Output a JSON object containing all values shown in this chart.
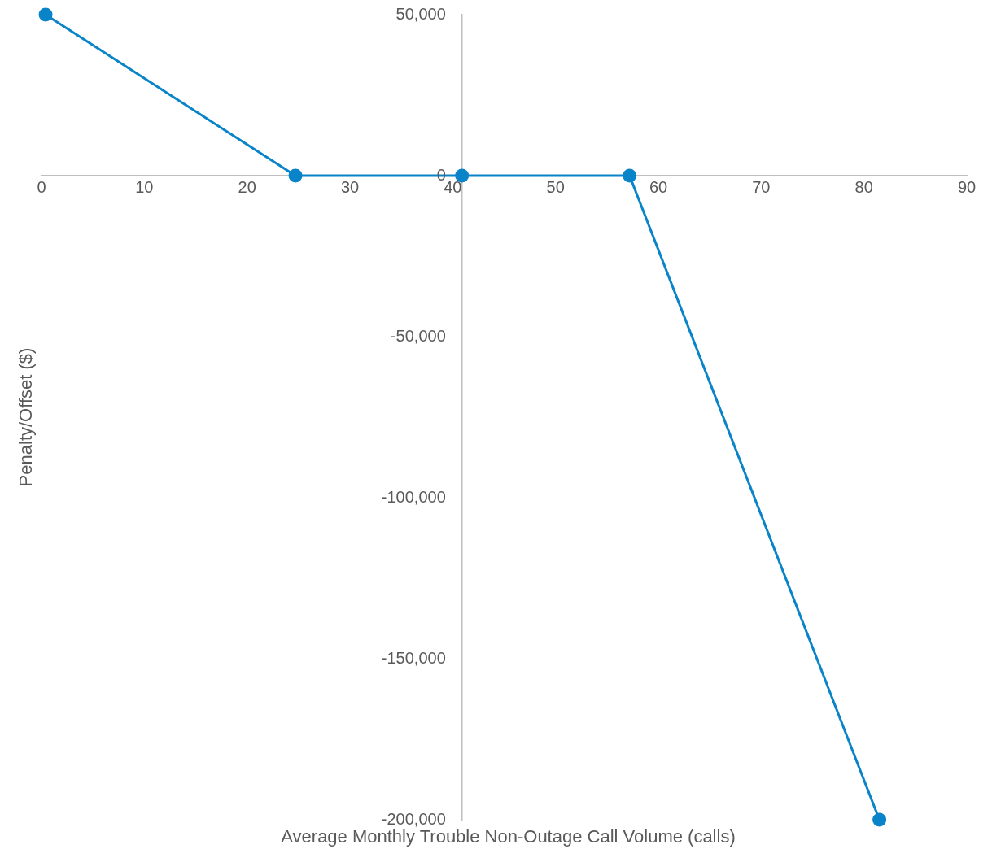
{
  "chart_data": {
    "type": "line",
    "xlabel": "Average Monthly Trouble Non-Outage Call Volume (calls)",
    "ylabel": "Penalty/Offset ($)",
    "series": [
      {
        "color": "#0a84c8",
        "x": [
          0.4,
          24.7,
          40.9,
          57.2,
          81.5
        ],
        "values": [
          50000,
          0,
          0,
          0,
          -200000
        ]
      }
    ],
    "xlim": [
      0,
      90
    ],
    "xticks": [
      0,
      10,
      20,
      30,
      40,
      50,
      60,
      70,
      80,
      90
    ],
    "ylim": [
      -200000,
      50000
    ],
    "yticks": [
      {
        "value": -200000,
        "label": "-200,000"
      },
      {
        "value": -150000,
        "label": "-150,000"
      },
      {
        "value": -100000,
        "label": "-100,000"
      },
      {
        "value": -50000,
        "label": "-50,000"
      },
      {
        "value": 0,
        "label": "0"
      },
      {
        "value": 50000,
        "label": "50,000"
      }
    ],
    "grid": false,
    "legend": false,
    "marker": "circle",
    "line_style": "solid"
  }
}
